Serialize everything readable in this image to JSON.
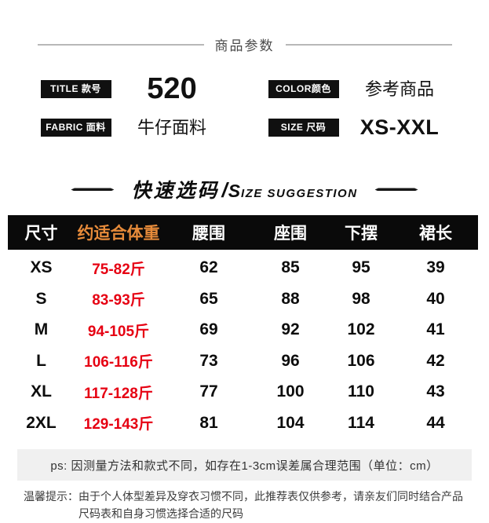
{
  "params_header": {
    "title": "商品参数"
  },
  "params": {
    "items": [
      {
        "label": "TITLE 款号",
        "value": "520",
        "style": "big"
      },
      {
        "label": "COLOR颜色",
        "value": "参考商品",
        "style": "normal"
      },
      {
        "label": "FABRIC 面料",
        "value": "牛仔面料",
        "style": "normal"
      },
      {
        "label": "SIZE 尺码",
        "value": "XS-XXL",
        "style": "bold"
      }
    ]
  },
  "size_header": {
    "title_cn": "快速选码",
    "slash": "/",
    "title_en_cap": "S",
    "title_en_rest": "IZE SUGGESTION"
  },
  "size_table": {
    "columns": [
      "尺寸",
      "约适合体重",
      "腰围",
      "座围",
      "下摆",
      "裙长"
    ],
    "highlight_column_color": "#e78b3a",
    "weight_color": "#e60012",
    "rows": [
      {
        "size": "XS",
        "weight": "75-82斤",
        "waist": "62",
        "hip": "85",
        "hem": "95",
        "length": "39"
      },
      {
        "size": "S",
        "weight": "83-93斤",
        "waist": "65",
        "hip": "88",
        "hem": "98",
        "length": "40"
      },
      {
        "size": "M",
        "weight": "94-105斤",
        "waist": "69",
        "hip": "92",
        "hem": "102",
        "length": "41"
      },
      {
        "size": "L",
        "weight": "106-116斤",
        "waist": "73",
        "hip": "96",
        "hem": "106",
        "length": "42"
      },
      {
        "size": "XL",
        "weight": "117-128斤",
        "waist": "77",
        "hip": "100",
        "hem": "110",
        "length": "43"
      },
      {
        "size": "2XL",
        "weight": "129-143斤",
        "waist": "81",
        "hip": "104",
        "hem": "114",
        "length": "44"
      }
    ]
  },
  "notes": {
    "ps": "ps: 因测量方法和款式不同，如存在1-3cm误差属合理范围（单位：cm）",
    "tips_label": "温馨提示：",
    "tips_text": "由于个人体型差异及穿衣习惯不同，此推荐表仅供参考，请亲友们同时结合产品尺码表和自身习惯选择合适的尺码"
  }
}
